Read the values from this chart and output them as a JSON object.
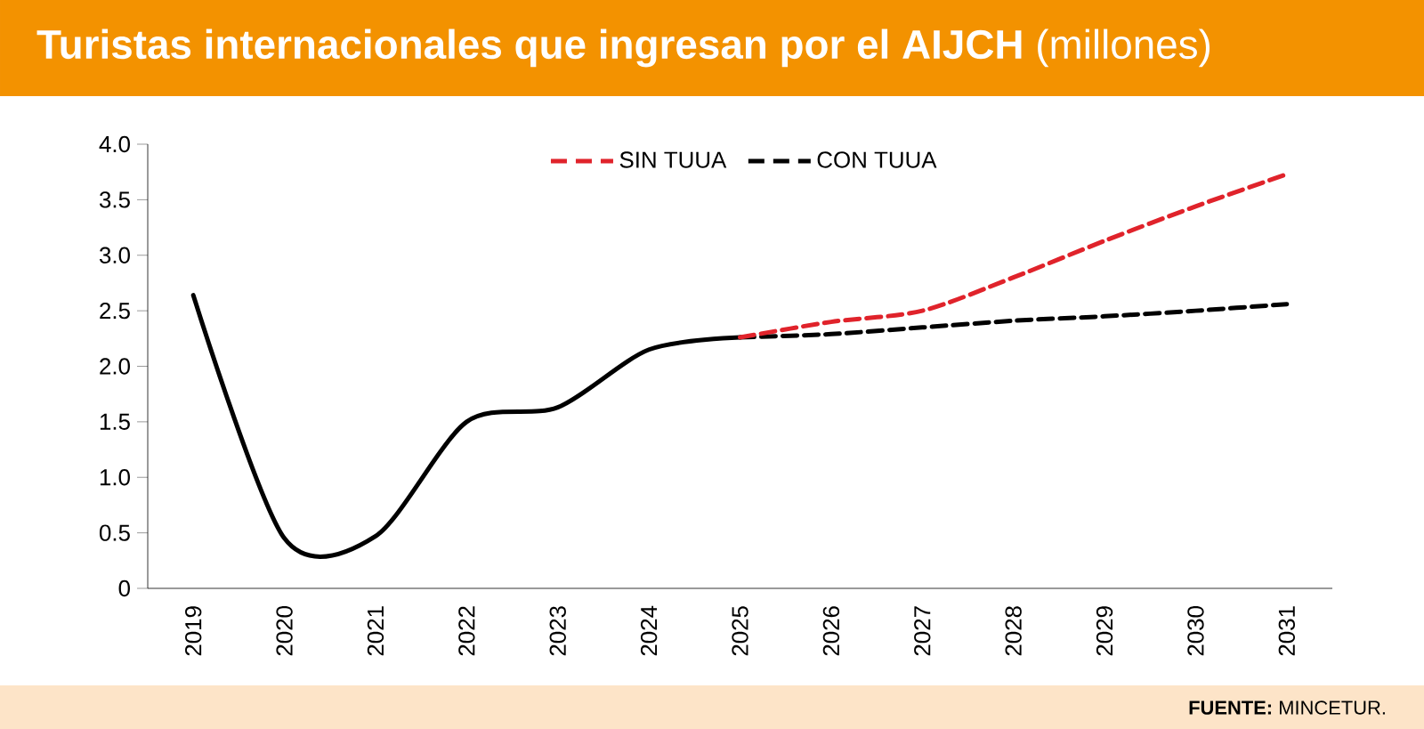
{
  "chart_data": {
    "type": "line",
    "title": "**Turistas internacionales que ingresan por el AIJCH** (millones)",
    "categories": [
      "2019",
      "2020",
      "2021",
      "2022",
      "2023",
      "2024",
      "2025",
      "2026",
      "2027",
      "2028",
      "2029",
      "2030",
      "2031"
    ],
    "series": [
      {
        "color": "#000000",
        "line_style": "solid",
        "values": [
          2.64,
          0.45,
          0.47,
          1.5,
          1.63,
          2.15,
          2.26,
          null,
          null,
          null,
          null,
          null,
          null
        ]
      },
      {
        "name": "SIN TUUA",
        "color": "#e0232b",
        "line_style": "dashed",
        "values": [
          null,
          null,
          null,
          null,
          null,
          null,
          2.26,
          2.4,
          2.5,
          2.8,
          3.13,
          3.44,
          3.73
        ]
      },
      {
        "name": "CON TUUA",
        "color": "#000000",
        "line_style": "dashed",
        "values": [
          null,
          null,
          null,
          null,
          null,
          null,
          2.26,
          2.29,
          2.35,
          2.41,
          2.45,
          2.5,
          2.56
        ]
      }
    ],
    "ylim": [
      0,
      4
    ],
    "yticks": [
      0,
      {
        "value": 0.5,
        "label": "0.5"
      },
      {
        "value": 1,
        "label": "1.0"
      },
      {
        "value": 1.5,
        "label": "1.5"
      },
      {
        "value": 2,
        "label": "2.0"
      },
      {
        "value": 2.5,
        "label": "2.5"
      },
      {
        "value": 3,
        "label": "3.0"
      },
      {
        "value": 3.5,
        "label": "3.5"
      },
      {
        "value": 4,
        "label": "4.0"
      }
    ],
    "grid": false,
    "legend": "top",
    "annotations": [
      "**FUENTE:** MINCETUR."
    ]
  }
}
